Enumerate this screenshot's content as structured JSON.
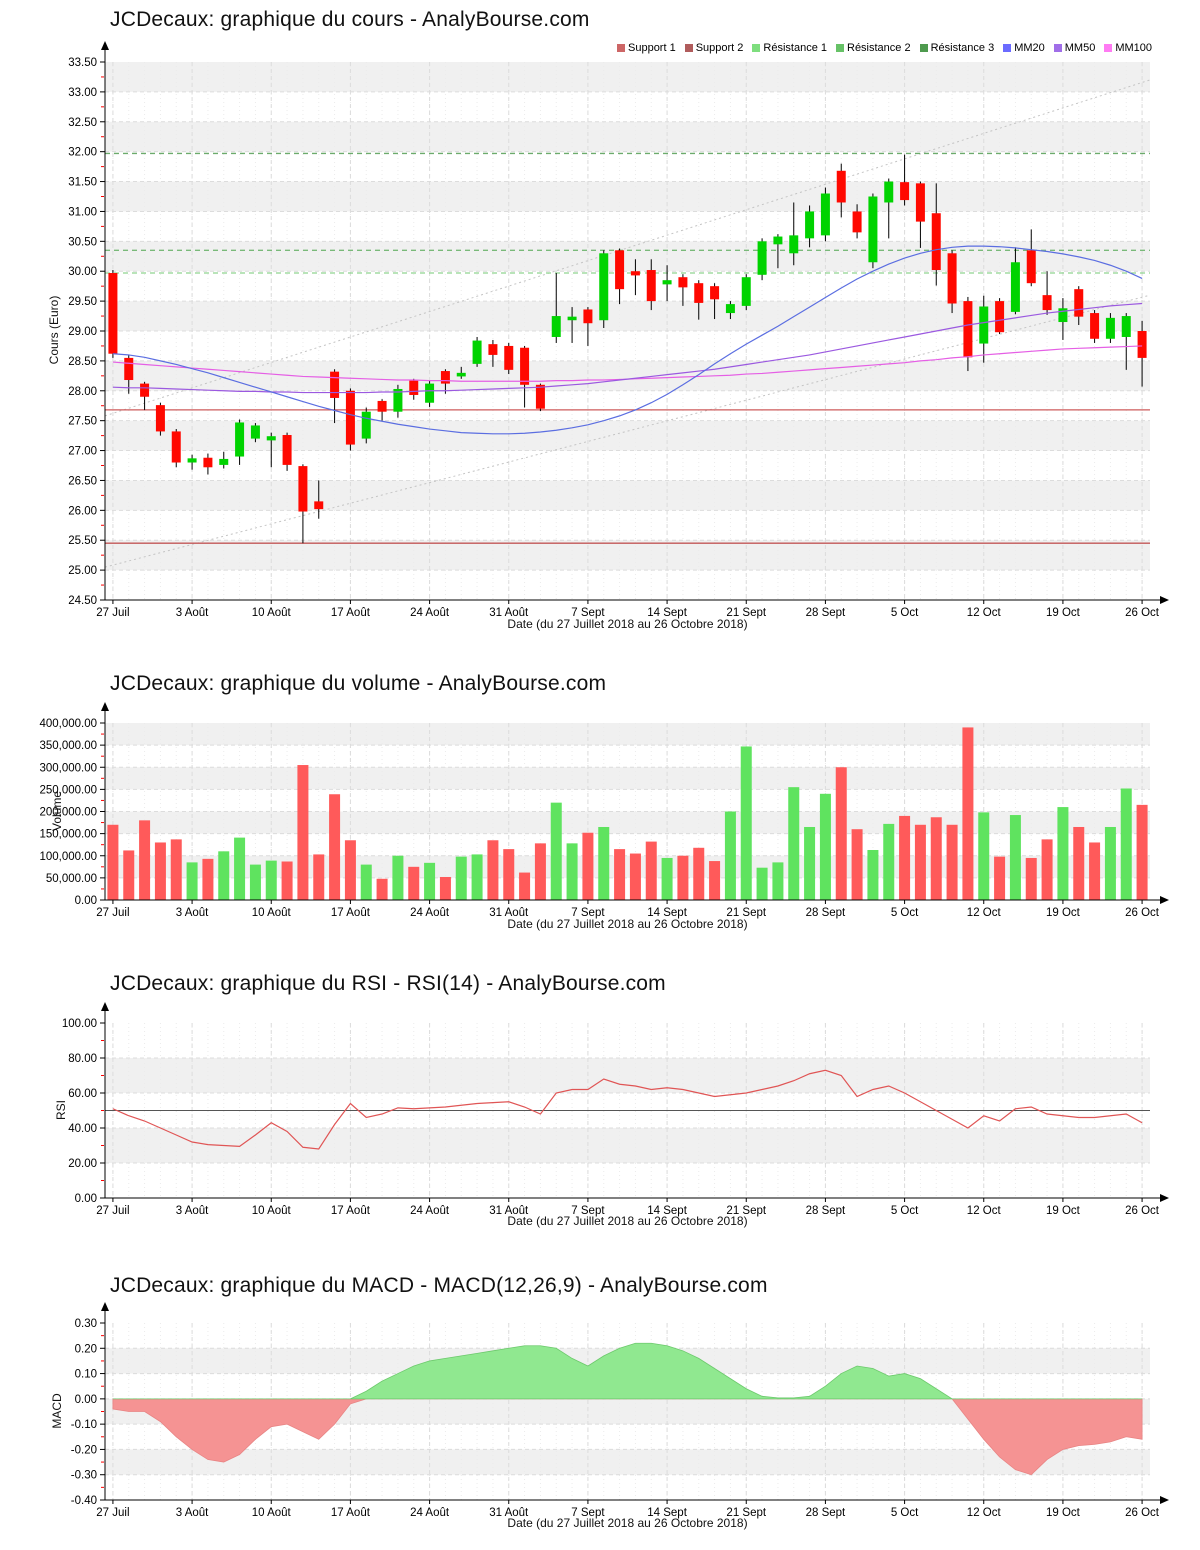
{
  "site": "AnalyBourse.com",
  "instrument": "JCDecaux",
  "colors": {
    "background": "#ffffff",
    "stripe": "#f0f0f0",
    "grid": "#dcdcdc",
    "daily_grid": "#ebebeb",
    "axis": "#000000",
    "minor_tick": "#ff0000",
    "candle_up": "#00d300",
    "candle_down": "#ff0800",
    "wick": "#000000",
    "vol_up": "#5fe35f",
    "vol_down": "#ff5a5a",
    "rsi_line": "#e05555",
    "rsi_midline": "#555555",
    "macd_pos": "#90e890",
    "macd_pos_edge": "#6cc96c",
    "macd_neg": "#f59393",
    "macd_neg_edge": "#e88484",
    "mm20": "#5b6ee1",
    "mm50": "#9b59e0",
    "mm100": "#e55fe5",
    "support1": "#cd5c5c",
    "support2": "#c25757",
    "resistance1": "#8fd48f",
    "resistance2": "#79b979",
    "resistance3": "#6cab6c",
    "channel": "#c4c4c4"
  },
  "x_axis": {
    "label": "Date (du 27 Juillet 2018 au 26 Octobre 2018)",
    "tick_labels": [
      "27 Juil",
      "3 Août",
      "10 Août",
      "17 Août",
      "24 Août",
      "31 Août",
      "7 Sept",
      "14 Sept",
      "21 Sept",
      "28 Sept",
      "5 Oct",
      "12 Oct",
      "19 Oct",
      "26 Oct"
    ],
    "tick_indices": [
      0,
      5,
      10,
      15,
      20,
      25,
      30,
      35,
      40,
      45,
      50,
      55,
      60,
      65
    ]
  },
  "chart_data": [
    {
      "type": "candlestick",
      "title": "JCDecaux: graphique du cours - AnalyBourse.com",
      "ylabel": "Cours (Euro)",
      "xlabel": "Date (du 27 Juillet 2018 au 26 Octobre 2018)",
      "ylim": [
        24.5,
        33.5
      ],
      "ystep": 0.5,
      "ytick_labels": [
        "33.50",
        "33.00",
        "32.50",
        "32.00",
        "31.50",
        "31.00",
        "30.50",
        "30.00",
        "29.50",
        "29.00",
        "28.50",
        "28.00",
        "27.50",
        "27.00",
        "26.50",
        "26.00",
        "25.50",
        "25.00",
        "24.50"
      ],
      "legend": [
        {
          "label": "Support 1",
          "color": "#cd6666"
        },
        {
          "label": "Support 2",
          "color": "#b05c5c"
        },
        {
          "label": "Résistance 1",
          "color": "#7ede7e"
        },
        {
          "label": "Résistance 2",
          "color": "#67c267"
        },
        {
          "label": "Résistance 3",
          "color": "#4e9a4e"
        },
        {
          "label": "MM20",
          "color": "#6b6bff"
        },
        {
          "label": "MM50",
          "color": "#a06ee8"
        },
        {
          "label": "MM100",
          "color": "#ff7bf3"
        }
      ],
      "levels": {
        "support1": 27.68,
        "support2": 25.45,
        "resistance1": 29.97,
        "resistance2": 30.35,
        "resistance3": 31.97
      },
      "channel": {
        "upper": [
          27.58,
          33.2
        ],
        "lower": [
          25.05,
          29.6
        ]
      },
      "candles": {
        "open": [
          29.97,
          28.55,
          28.12,
          27.76,
          27.32,
          26.8,
          26.88,
          26.76,
          26.9,
          27.2,
          27.17,
          27.26,
          26.74,
          26.15,
          28.32,
          28.0,
          27.2,
          27.83,
          27.65,
          28.17,
          27.8,
          28.33,
          28.24,
          28.45,
          28.78,
          28.75,
          28.72,
          28.1,
          28.9,
          29.18,
          29.36,
          29.18,
          30.35,
          30.0,
          30.02,
          29.78,
          29.9,
          29.8,
          29.75,
          29.3,
          29.42,
          29.94,
          30.45,
          30.3,
          30.55,
          30.6,
          31.68,
          31.0,
          30.15,
          31.15,
          31.49,
          31.47,
          30.97,
          30.3,
          29.5,
          28.79,
          29.5,
          29.32,
          30.35,
          29.6,
          29.15,
          29.7,
          29.3,
          28.87,
          28.9,
          29.0
        ],
        "high": [
          30.02,
          28.6,
          28.15,
          27.8,
          27.36,
          26.93,
          26.95,
          26.98,
          27.52,
          27.46,
          27.3,
          27.3,
          26.77,
          26.5,
          28.36,
          28.04,
          27.72,
          27.86,
          28.1,
          28.2,
          28.18,
          28.36,
          28.4,
          28.9,
          28.85,
          28.8,
          28.75,
          28.12,
          29.97,
          29.4,
          29.4,
          30.35,
          30.38,
          30.2,
          30.2,
          30.1,
          29.95,
          29.85,
          29.8,
          29.5,
          29.95,
          30.55,
          30.62,
          31.15,
          31.1,
          31.4,
          31.8,
          31.12,
          31.3,
          31.55,
          31.95,
          31.5,
          31.47,
          30.35,
          29.57,
          29.59,
          29.55,
          30.4,
          30.7,
          30.0,
          29.55,
          29.75,
          29.35,
          29.3,
          29.3,
          29.17
        ],
        "low": [
          28.55,
          27.95,
          27.68,
          27.25,
          26.72,
          26.68,
          26.6,
          26.7,
          26.76,
          27.14,
          26.72,
          26.66,
          25.45,
          25.86,
          27.46,
          27.0,
          27.12,
          27.5,
          27.55,
          27.85,
          27.73,
          27.95,
          28.2,
          28.4,
          28.4,
          28.28,
          27.72,
          27.66,
          28.8,
          28.8,
          28.75,
          29.05,
          29.45,
          29.6,
          29.35,
          29.5,
          29.42,
          29.19,
          29.2,
          29.2,
          29.35,
          29.85,
          30.05,
          30.1,
          30.4,
          30.5,
          30.9,
          30.55,
          30.05,
          30.55,
          31.1,
          30.39,
          29.76,
          29.3,
          28.33,
          28.47,
          28.95,
          29.28,
          29.75,
          29.27,
          28.85,
          29.1,
          28.8,
          28.8,
          28.35,
          28.07
        ],
        "close": [
          28.62,
          28.18,
          27.9,
          27.32,
          26.8,
          26.87,
          26.72,
          26.86,
          27.47,
          27.42,
          27.24,
          26.76,
          25.98,
          26.02,
          27.88,
          27.1,
          27.65,
          27.65,
          28.03,
          27.93,
          28.12,
          28.12,
          28.3,
          28.84,
          28.6,
          28.35,
          28.1,
          27.7,
          29.25,
          29.24,
          29.13,
          30.3,
          29.7,
          29.93,
          29.5,
          29.85,
          29.73,
          29.47,
          29.53,
          29.45,
          29.9,
          30.5,
          30.58,
          30.6,
          31.0,
          31.3,
          31.15,
          30.65,
          31.25,
          31.5,
          31.19,
          30.83,
          30.02,
          29.46,
          28.56,
          29.41,
          28.98,
          30.15,
          29.8,
          29.35,
          29.38,
          29.24,
          28.87,
          29.22,
          29.25,
          28.55
        ],
        "color": [
          "r",
          "r",
          "r",
          "r",
          "r",
          "g",
          "r",
          "g",
          "g",
          "g",
          "g",
          "r",
          "r",
          "r",
          "r",
          "r",
          "g",
          "r",
          "g",
          "r",
          "g",
          "r",
          "g",
          "g",
          "r",
          "r",
          "r",
          "r",
          "g",
          "g",
          "r",
          "g",
          "r",
          "r",
          "r",
          "g",
          "r",
          "r",
          "r",
          "g",
          "g",
          "g",
          "g",
          "g",
          "g",
          "g",
          "r",
          "r",
          "g",
          "g",
          "r",
          "r",
          "r",
          "r",
          "r",
          "g",
          "r",
          "g",
          "r",
          "r",
          "g",
          "r",
          "r",
          "g",
          "g",
          "r"
        ]
      },
      "overlays": {
        "mm20": [
          28.62,
          28.6,
          28.56,
          28.5,
          28.44,
          28.37,
          28.3,
          28.22,
          28.14,
          28.06,
          27.98,
          27.9,
          27.82,
          27.74,
          27.67,
          27.6,
          27.54,
          27.49,
          27.44,
          27.4,
          27.36,
          27.33,
          27.3,
          27.29,
          27.28,
          27.28,
          27.29,
          27.31,
          27.34,
          27.38,
          27.43,
          27.5,
          27.58,
          27.68,
          27.8,
          27.94,
          28.1,
          28.27,
          28.45,
          28.62,
          28.78,
          28.93,
          29.08,
          29.24,
          29.4,
          29.56,
          29.72,
          29.87,
          30.0,
          30.12,
          30.22,
          30.3,
          30.36,
          30.4,
          30.42,
          30.42,
          30.41,
          30.39,
          30.36,
          30.33,
          30.29,
          30.24,
          30.18,
          30.1,
          30.0,
          29.88
        ],
        "mm50": [
          28.06,
          28.05,
          28.05,
          28.04,
          28.03,
          28.02,
          28.01,
          28.0,
          27.99,
          27.99,
          27.98,
          27.98,
          27.97,
          27.97,
          27.97,
          27.97,
          27.97,
          27.98,
          27.98,
          27.99,
          28.0,
          28.0,
          28.01,
          28.02,
          28.03,
          28.04,
          28.05,
          28.06,
          28.08,
          28.1,
          28.12,
          28.15,
          28.18,
          28.21,
          28.24,
          28.27,
          28.3,
          28.33,
          28.36,
          28.4,
          28.44,
          28.48,
          28.52,
          28.56,
          28.6,
          28.65,
          28.7,
          28.75,
          28.8,
          28.85,
          28.9,
          28.95,
          29.0,
          29.05,
          29.1,
          29.14,
          29.18,
          29.22,
          29.26,
          29.3,
          29.33,
          29.36,
          29.39,
          29.42,
          29.44,
          29.46
        ],
        "mm100": [
          28.48,
          28.46,
          28.44,
          28.42,
          28.4,
          28.38,
          28.36,
          28.34,
          28.32,
          28.3,
          28.28,
          28.26,
          28.24,
          28.23,
          28.22,
          28.21,
          28.2,
          28.19,
          28.18,
          28.18,
          28.17,
          28.17,
          28.16,
          28.16,
          28.16,
          28.16,
          28.16,
          28.16,
          28.17,
          28.17,
          28.18,
          28.18,
          28.19,
          28.2,
          28.21,
          28.22,
          28.23,
          28.24,
          28.25,
          28.26,
          28.28,
          28.29,
          28.31,
          28.33,
          28.35,
          28.37,
          28.39,
          28.41,
          28.43,
          28.45,
          28.47,
          28.5,
          28.52,
          28.55,
          28.57,
          28.6,
          28.62,
          28.64,
          28.66,
          28.68,
          28.7,
          28.71,
          28.72,
          28.73,
          28.74,
          28.75
        ]
      }
    },
    {
      "type": "bar",
      "title": "JCDecaux: graphique du volume - AnalyBourse.com",
      "ylabel": "Volume",
      "xlabel": "Date (du 27 Juillet 2018 au 26 Octobre 2018)",
      "ylim": [
        0,
        400000
      ],
      "ystep": 50000,
      "ytick_labels": [
        "400,000.00",
        "350,000.00",
        "300,000.00",
        "250,000.00",
        "200,000.00",
        "150,000.00",
        "100,000.00",
        "50,000.00",
        "0.00"
      ],
      "values": [
        170000,
        112000,
        180000,
        130000,
        137000,
        85000,
        93000,
        110000,
        141000,
        80000,
        89000,
        87000,
        305000,
        103000,
        239000,
        135000,
        80000,
        48000,
        100000,
        75000,
        84000,
        52000,
        98000,
        103000,
        135000,
        115000,
        62000,
        128000,
        220000,
        128000,
        152000,
        165000,
        115000,
        105000,
        132000,
        95000,
        100000,
        118000,
        88000,
        200000,
        347000,
        73000,
        85000,
        255000,
        165000,
        240000,
        300000,
        160000,
        113000,
        172000,
        190000,
        170000,
        187000,
        170000,
        390000,
        198000,
        98000,
        192000,
        95000,
        137000,
        210000,
        165000,
        130000,
        165000,
        252000,
        215000
      ],
      "color": [
        "r",
        "r",
        "r",
        "r",
        "r",
        "g",
        "r",
        "g",
        "g",
        "g",
        "g",
        "r",
        "r",
        "r",
        "r",
        "r",
        "g",
        "r",
        "g",
        "r",
        "g",
        "r",
        "g",
        "g",
        "r",
        "r",
        "r",
        "r",
        "g",
        "g",
        "r",
        "g",
        "r",
        "r",
        "r",
        "g",
        "r",
        "r",
        "r",
        "g",
        "g",
        "g",
        "g",
        "g",
        "g",
        "g",
        "r",
        "r",
        "g",
        "g",
        "r",
        "r",
        "r",
        "r",
        "r",
        "g",
        "r",
        "g",
        "r",
        "r",
        "g",
        "r",
        "r",
        "g",
        "g",
        "r"
      ]
    },
    {
      "type": "line",
      "title": "JCDecaux: graphique du RSI - RSI(14) - AnalyBourse.com",
      "ylabel": "RSI",
      "xlabel": "Date (du 27 Juillet 2018 au 26 Octobre 2018)",
      "ylim": [
        0,
        100
      ],
      "ystep": 20,
      "midline": 50,
      "ytick_labels": [
        "100.00",
        "80.00",
        "60.00",
        "40.00",
        "20.00",
        "0.00"
      ],
      "values": [
        51,
        47,
        44,
        40,
        36,
        32,
        30.5,
        30,
        29.5,
        36,
        43,
        38,
        29,
        28,
        42,
        54,
        46,
        48,
        51.5,
        51,
        51.5,
        52,
        53,
        54,
        54.5,
        55,
        52,
        48,
        60,
        62,
        62,
        68,
        65,
        64,
        62,
        63,
        62,
        60,
        58,
        59,
        60,
        62,
        64,
        67,
        71,
        73,
        70,
        58,
        62,
        64,
        60,
        55,
        50,
        45,
        40,
        47,
        44,
        51,
        52,
        48,
        47,
        46,
        46,
        47,
        48,
        43
      ]
    },
    {
      "type": "area",
      "title": "JCDecaux: graphique du MACD - MACD(12,26,9) - AnalyBourse.com",
      "ylabel": "MACD",
      "xlabel": "Date (du 27 Juillet 2018 au 26 Octobre 2018)",
      "ylim": [
        -0.4,
        0.3
      ],
      "ystep": 0.1,
      "ytick_labels": [
        "0.30",
        "0.20",
        "0.10",
        "0.00",
        "-0.10",
        "-0.20",
        "-0.30",
        "-0.40"
      ],
      "values": [
        -0.04,
        -0.05,
        -0.05,
        -0.09,
        -0.15,
        -0.2,
        -0.24,
        -0.25,
        -0.22,
        -0.16,
        -0.11,
        -0.1,
        -0.13,
        -0.16,
        -0.1,
        -0.02,
        0.03,
        0.07,
        0.1,
        0.13,
        0.15,
        0.16,
        0.17,
        0.18,
        0.19,
        0.2,
        0.21,
        0.21,
        0.2,
        0.16,
        0.13,
        0.17,
        0.2,
        0.22,
        0.22,
        0.21,
        0.19,
        0.16,
        0.12,
        0.08,
        0.04,
        0.01,
        0.004,
        0.004,
        0.01,
        0.05,
        0.1,
        0.13,
        0.12,
        0.09,
        0.1,
        0.08,
        0.04,
        0.0,
        -0.08,
        -0.16,
        -0.23,
        -0.28,
        -0.3,
        -0.24,
        -0.2,
        -0.185,
        -0.18,
        -0.17,
        -0.15,
        -0.16
      ]
    }
  ]
}
